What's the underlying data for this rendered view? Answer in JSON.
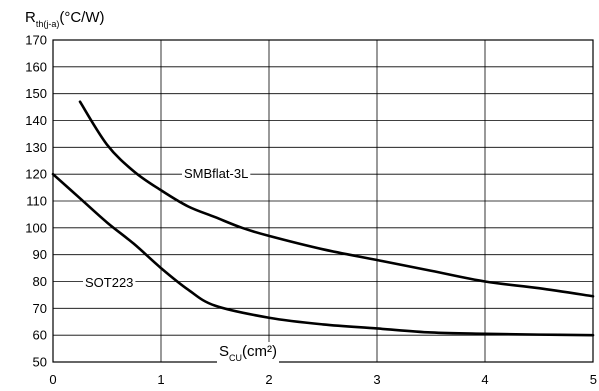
{
  "chart_data": {
    "type": "line",
    "title": "",
    "ylabel": {
      "main": "R",
      "sub": "th(j-a)",
      "unit": "(°C/W)"
    },
    "xlabel": {
      "main": "S",
      "sub": "CU",
      "unit": "(cm²)"
    },
    "xlim": [
      0,
      5
    ],
    "ylim": [
      50,
      170
    ],
    "x_ticks": [
      "0",
      "1",
      "2",
      "3",
      "4",
      "5"
    ],
    "y_ticks": [
      "50",
      "60",
      "70",
      "80",
      "90",
      "100",
      "110",
      "120",
      "130",
      "140",
      "150",
      "160",
      "170"
    ],
    "grid": true,
    "series": [
      {
        "name": "SMBflat-3L",
        "points": [
          [
            0.25,
            147
          ],
          [
            0.5,
            131
          ],
          [
            0.75,
            121
          ],
          [
            1.0,
            114
          ],
          [
            1.25,
            108
          ],
          [
            1.5,
            104
          ],
          [
            1.75,
            100
          ],
          [
            2.0,
            97
          ],
          [
            2.5,
            92
          ],
          [
            3.0,
            88
          ],
          [
            3.5,
            84
          ],
          [
            4.0,
            80
          ],
          [
            4.5,
            77.5
          ],
          [
            5.0,
            74.5
          ]
        ]
      },
      {
        "name": "SOT223",
        "points": [
          [
            0.0,
            120
          ],
          [
            0.25,
            111
          ],
          [
            0.5,
            102
          ],
          [
            0.75,
            94
          ],
          [
            1.0,
            85
          ],
          [
            1.25,
            77
          ],
          [
            1.5,
            71
          ],
          [
            2.0,
            66.5
          ],
          [
            2.5,
            64
          ],
          [
            3.0,
            62.5
          ],
          [
            3.5,
            61
          ],
          [
            4.0,
            60.5
          ],
          [
            4.5,
            60.2
          ],
          [
            5.0,
            60
          ]
        ]
      }
    ]
  }
}
